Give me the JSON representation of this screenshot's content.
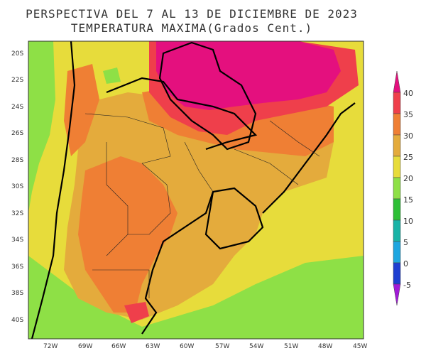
{
  "title_line1": "PERSPECTIVA DEL 7 AL 13 DE DICIEMBRE DE 2023",
  "title_line2": "TEMPERATURA MAXIMA(Grados Cent.)",
  "lat_labels": [
    "20S",
    "22S",
    "24S",
    "26S",
    "28S",
    "30S",
    "32S",
    "34S",
    "36S",
    "38S",
    "40S"
  ],
  "lon_labels": [
    "72W",
    "69W",
    "66W",
    "63W",
    "60W",
    "57W",
    "54W",
    "51W",
    "48W",
    "45W"
  ],
  "colorbar": {
    "ticks": [
      "40",
      "35",
      "30",
      "25",
      "20",
      "15",
      "10",
      "5",
      "0",
      "-5"
    ],
    "bands": [
      {
        "range": ">40",
        "color": "#e4107e"
      },
      {
        "range": "35-40",
        "color": "#ef3f4b"
      },
      {
        "range": "30-35",
        "color": "#ef7f34"
      },
      {
        "range": "25-30",
        "color": "#e4ab3c"
      },
      {
        "range": "20-25",
        "color": "#e7dc3b"
      },
      {
        "range": "15-20",
        "color": "#8ee046"
      },
      {
        "range": "10-15",
        "color": "#2ebf36"
      },
      {
        "range": "5-10",
        "color": "#19b3a6"
      },
      {
        "range": "0-5",
        "color": "#1ea6e0"
      },
      {
        "range": "-5-0",
        "color": "#1e3fd1"
      },
      {
        "range": "<-5",
        "color": "#a21ad8"
      }
    ]
  }
}
